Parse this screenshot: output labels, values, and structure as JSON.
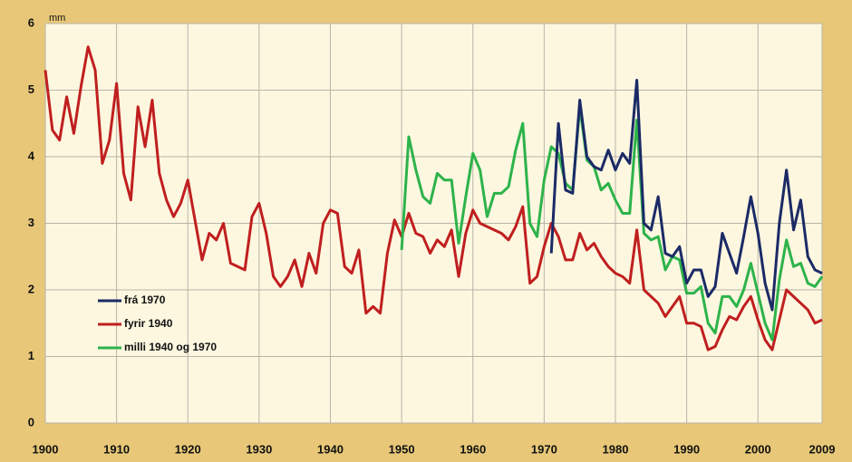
{
  "chart_data": {
    "type": "line",
    "ylabel": "mm",
    "x": [
      1900,
      1901,
      1902,
      1903,
      1904,
      1905,
      1906,
      1907,
      1908,
      1909,
      1910,
      1911,
      1912,
      1913,
      1914,
      1915,
      1916,
      1917,
      1918,
      1919,
      1920,
      1921,
      1922,
      1923,
      1924,
      1925,
      1926,
      1927,
      1928,
      1929,
      1930,
      1931,
      1932,
      1933,
      1934,
      1935,
      1936,
      1937,
      1938,
      1939,
      1940,
      1941,
      1942,
      1943,
      1944,
      1945,
      1946,
      1947,
      1948,
      1949,
      1950,
      1951,
      1952,
      1953,
      1954,
      1955,
      1956,
      1957,
      1958,
      1959,
      1960,
      1961,
      1962,
      1963,
      1964,
      1965,
      1966,
      1967,
      1968,
      1969,
      1970,
      1971,
      1972,
      1973,
      1974,
      1975,
      1976,
      1977,
      1978,
      1979,
      1980,
      1981,
      1982,
      1983,
      1984,
      1985,
      1986,
      1987,
      1988,
      1989,
      1990,
      1991,
      1992,
      1993,
      1994,
      1995,
      1996,
      1997,
      1998,
      1999,
      2000,
      2001,
      2002,
      2003,
      2004,
      2005,
      2006,
      2007,
      2008,
      2009
    ],
    "series": [
      {
        "name": "frá 1970",
        "color": "#1b2a66",
        "values": [
          null,
          null,
          null,
          null,
          null,
          null,
          null,
          null,
          null,
          null,
          null,
          null,
          null,
          null,
          null,
          null,
          null,
          null,
          null,
          null,
          null,
          null,
          null,
          null,
          null,
          null,
          null,
          null,
          null,
          null,
          null,
          null,
          null,
          null,
          null,
          null,
          null,
          null,
          null,
          null,
          null,
          null,
          null,
          null,
          null,
          null,
          null,
          null,
          null,
          null,
          null,
          null,
          null,
          null,
          null,
          null,
          null,
          null,
          null,
          null,
          null,
          null,
          null,
          null,
          null,
          null,
          null,
          null,
          null,
          null,
          null,
          2.55,
          4.5,
          3.5,
          3.45,
          4.85,
          4.0,
          3.85,
          3.8,
          4.1,
          3.8,
          4.05,
          3.9,
          5.15,
          3.0,
          2.9,
          3.4,
          2.55,
          2.5,
          2.65,
          2.1,
          2.3,
          2.3,
          1.9,
          2.05,
          2.85,
          2.55,
          2.25,
          2.8,
          3.4,
          2.85,
          2.1,
          1.7,
          3.0,
          3.8,
          2.9,
          3.35,
          2.5,
          2.3,
          2.25
        ]
      },
      {
        "name": "fyrir 1940",
        "color": "#c01f1f",
        "values": [
          5.3,
          4.4,
          4.25,
          4.9,
          4.35,
          5.05,
          5.65,
          5.3,
          3.9,
          4.25,
          5.1,
          3.75,
          3.35,
          4.75,
          4.15,
          4.85,
          3.75,
          3.35,
          3.1,
          3.3,
          3.65,
          3.05,
          2.45,
          2.85,
          2.75,
          3.0,
          2.4,
          2.35,
          2.3,
          3.1,
          3.3,
          2.85,
          2.2,
          2.05,
          2.2,
          2.45,
          2.05,
          2.55,
          2.25,
          3.0,
          3.2,
          3.15,
          2.35,
          2.25,
          2.6,
          1.65,
          1.75,
          1.65,
          2.55,
          3.05,
          2.8,
          3.15,
          2.85,
          2.8,
          2.55,
          2.75,
          2.65,
          2.9,
          2.2,
          2.85,
          3.2,
          3.0,
          2.95,
          2.9,
          2.85,
          2.75,
          2.95,
          3.25,
          2.1,
          2.2,
          2.65,
          3.0,
          2.8,
          2.45,
          2.45,
          2.85,
          2.6,
          2.7,
          2.5,
          2.35,
          2.25,
          2.2,
          2.1,
          2.9,
          2.0,
          1.9,
          1.8,
          1.6,
          1.75,
          1.9,
          1.5,
          1.5,
          1.45,
          1.1,
          1.15,
          1.4,
          1.6,
          1.55,
          1.75,
          1.9,
          1.55,
          1.25,
          1.1,
          1.55,
          2.0,
          1.9,
          1.8,
          1.7,
          1.5,
          1.55
        ]
      },
      {
        "name": "milli 1940 og 1970",
        "color": "#2db34a",
        "values": [
          null,
          null,
          null,
          null,
          null,
          null,
          null,
          null,
          null,
          null,
          null,
          null,
          null,
          null,
          null,
          null,
          null,
          null,
          null,
          null,
          null,
          null,
          null,
          null,
          null,
          null,
          null,
          null,
          null,
          null,
          null,
          null,
          null,
          null,
          null,
          null,
          null,
          null,
          null,
          null,
          null,
          null,
          null,
          null,
          null,
          null,
          null,
          null,
          null,
          null,
          2.6,
          4.3,
          3.8,
          3.4,
          3.3,
          3.75,
          3.65,
          3.65,
          2.7,
          3.4,
          4.05,
          3.8,
          3.1,
          3.45,
          3.45,
          3.55,
          4.1,
          4.5,
          3.0,
          2.8,
          3.65,
          4.15,
          4.05,
          3.6,
          3.5,
          4.75,
          3.95,
          3.85,
          3.5,
          3.6,
          3.35,
          3.15,
          3.15,
          4.55,
          2.85,
          2.75,
          2.8,
          2.3,
          2.5,
          2.45,
          1.95,
          1.95,
          2.05,
          1.5,
          1.35,
          1.9,
          1.9,
          1.75,
          2.0,
          2.4,
          1.95,
          1.5,
          1.25,
          2.15,
          2.75,
          2.35,
          2.4,
          2.1,
          2.05,
          2.2
        ]
      }
    ],
    "xlim": [
      1900,
      2009
    ],
    "xticks": [
      1900,
      1910,
      1920,
      1930,
      1940,
      1950,
      1960,
      1970,
      1980,
      1990,
      2000,
      2009
    ],
    "ylim": [
      0,
      6
    ],
    "yticks": [
      0,
      1,
      2,
      3,
      4,
      5,
      6
    ],
    "grid": true,
    "legend": "lower left"
  }
}
